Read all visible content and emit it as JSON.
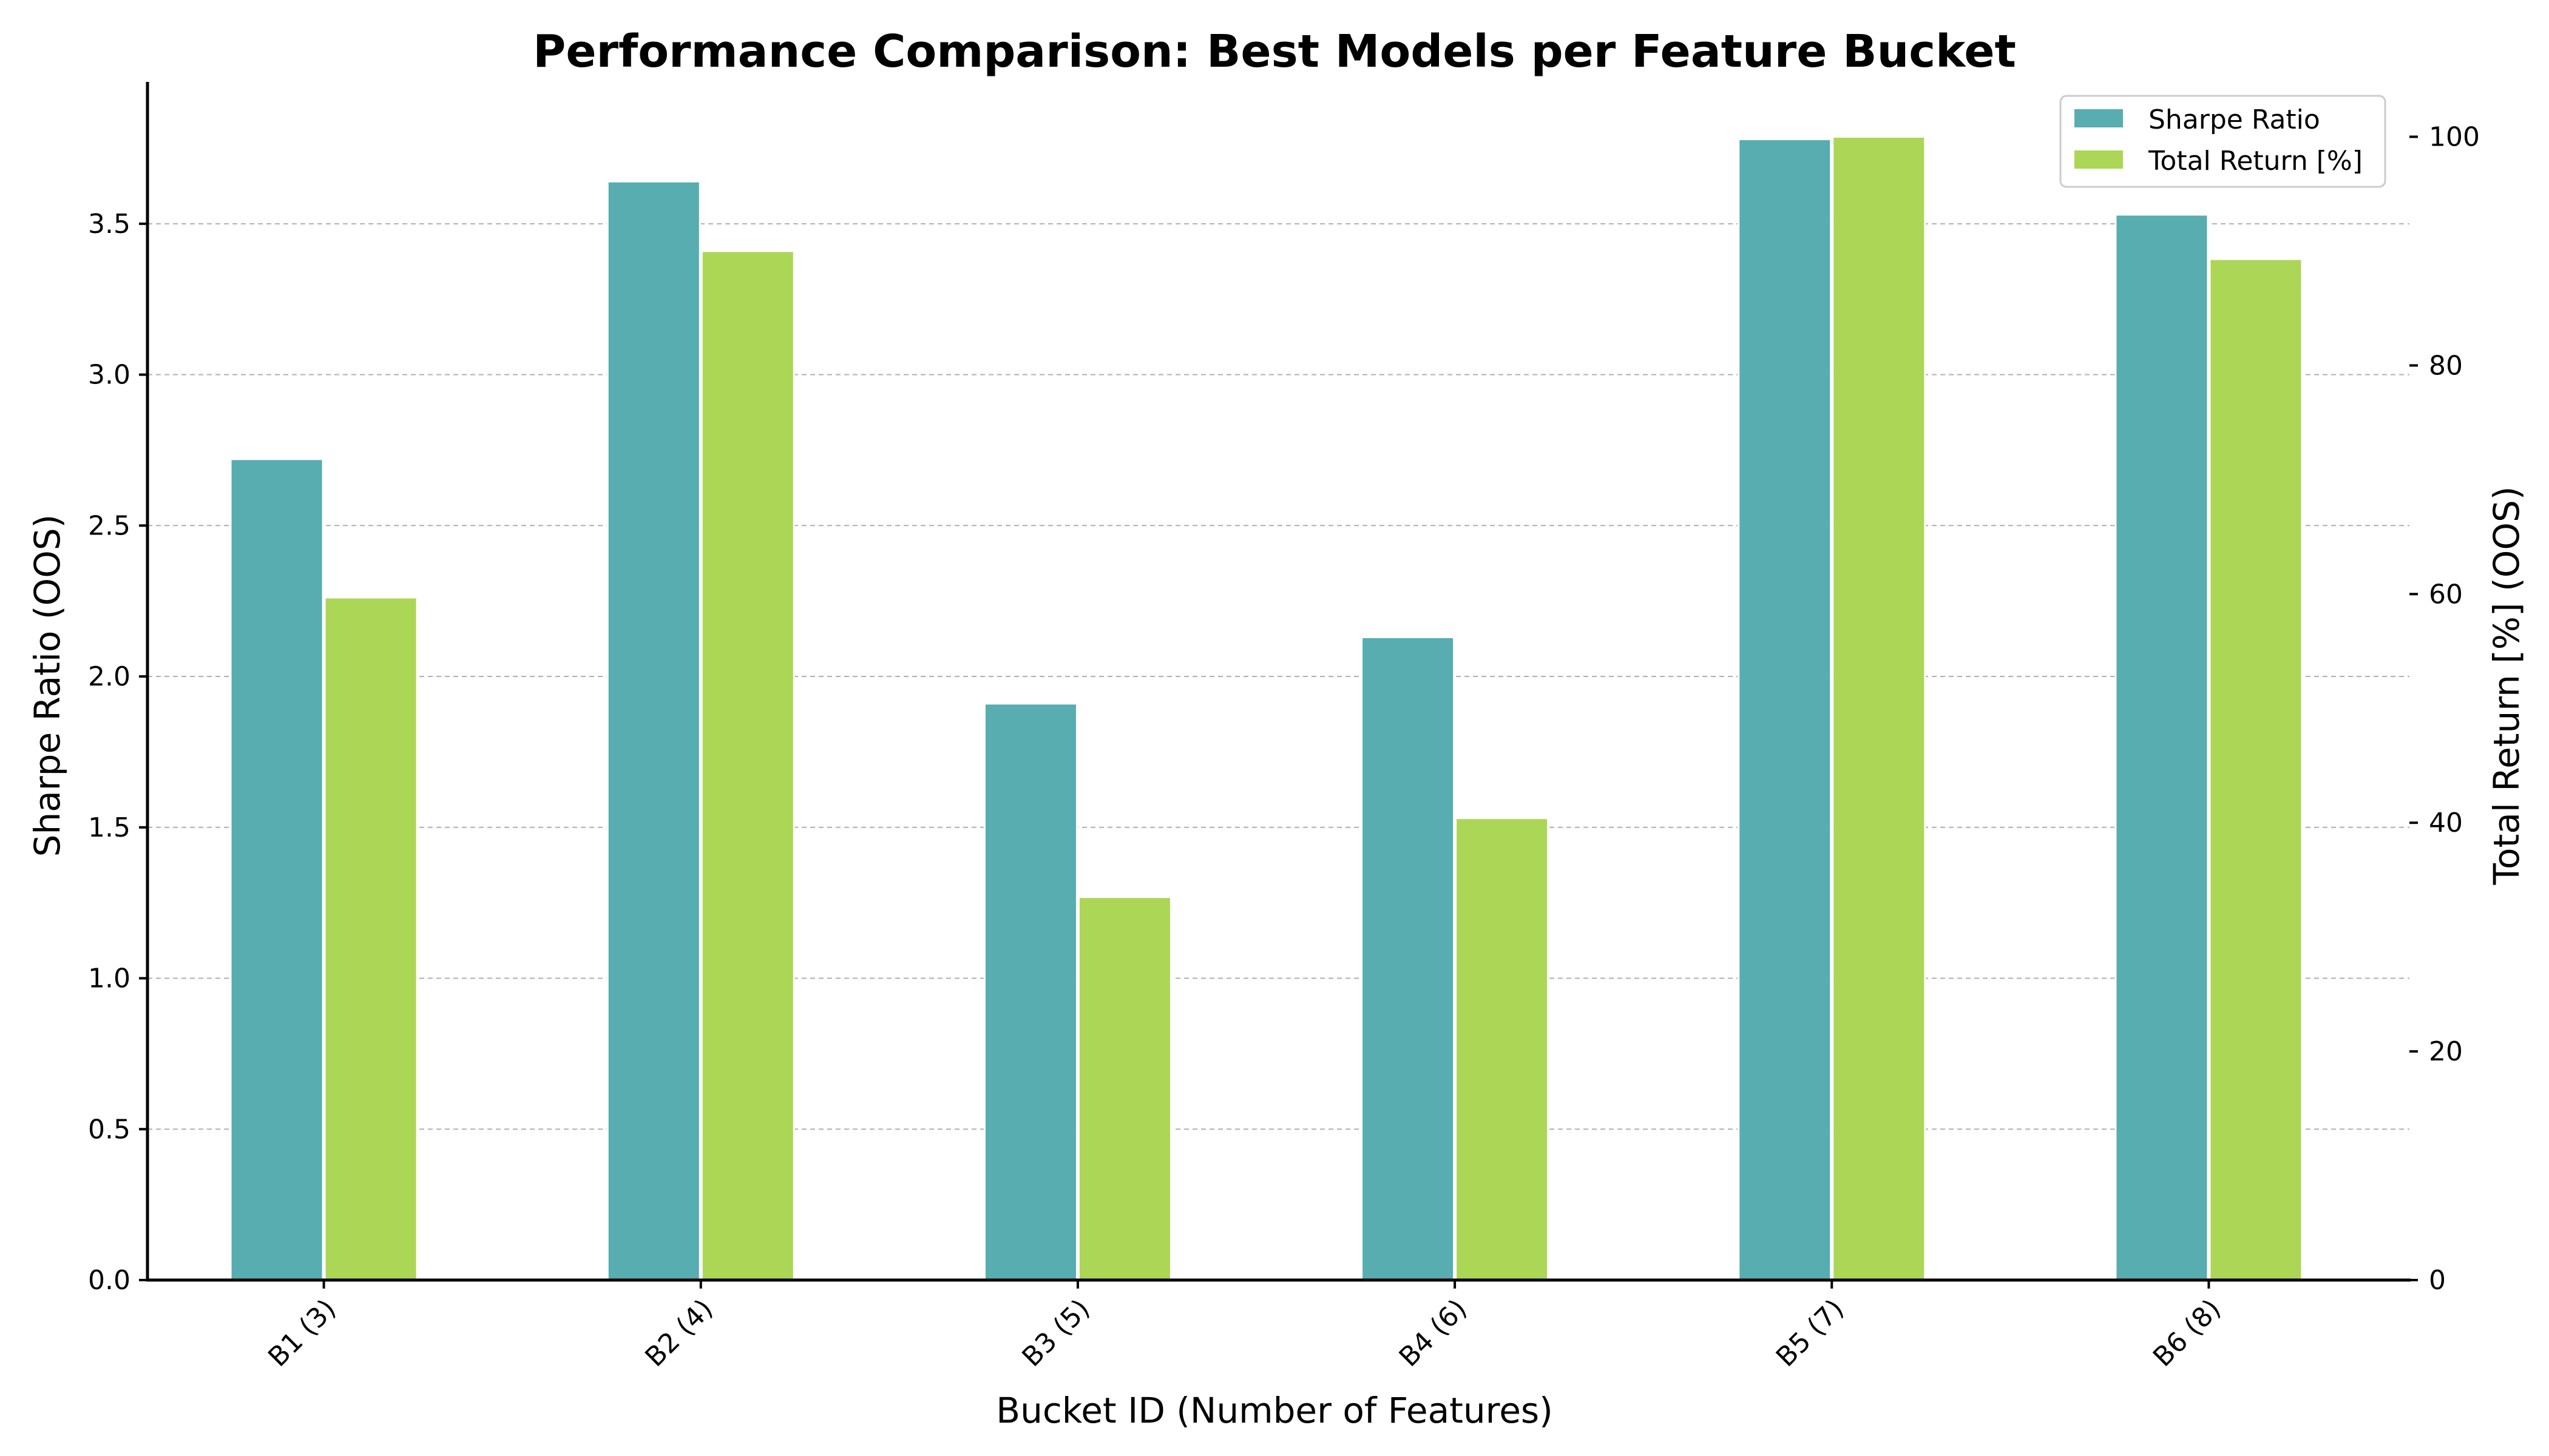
{
  "chart_data": {
    "type": "bar",
    "title": "Performance Comparison: Best Models per Feature Bucket",
    "xlabel": "Bucket ID (Number of Features)",
    "ylabel": "Sharpe Ratio (OOS)",
    "y2label": "Total Return [%] (OOS)",
    "categories": [
      "B1 (3)",
      "B2 (4)",
      "B3 (5)",
      "B4 (6)",
      "B5 (7)",
      "B6 (8)"
    ],
    "ylim": [
      0,
      3.97
    ],
    "y2lim": [
      0,
      104.8
    ],
    "yticks": [
      "0.0",
      "0.5",
      "1.0",
      "1.5",
      "2.0",
      "2.5",
      "3.0",
      "3.5"
    ],
    "y2ticks": [
      "0",
      "20",
      "40",
      "60",
      "80",
      "100"
    ],
    "grid": true,
    "legend_position": "top-right",
    "series": [
      {
        "name": "Sharpe Ratio",
        "axis": "left",
        "color": "#57adb0",
        "values": [
          2.72,
          3.64,
          1.91,
          2.13,
          3.78,
          3.53
        ]
      },
      {
        "name": "Total Return [%]",
        "axis": "right",
        "color": "#acd655",
        "values": [
          59.7,
          90.0,
          33.5,
          40.4,
          100.0,
          89.3
        ]
      }
    ]
  }
}
